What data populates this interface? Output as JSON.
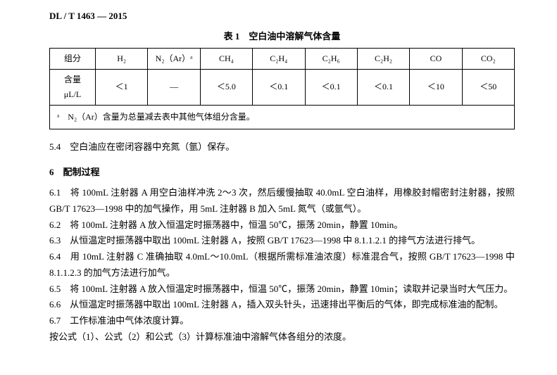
{
  "doc_id": "DL / T 1463 — 2015",
  "table": {
    "title": "表 1　空白油中溶解气体含量",
    "headers": [
      "组分",
      "H₂",
      "N₂（Ar）ᵃ",
      "CH₄",
      "C₂H₄",
      "C₂H₆",
      "C₂H₂",
      "CO",
      "CO₂"
    ],
    "row_label": "含量\nμL/L",
    "values": [
      "＜1",
      "—",
      "＜5.0",
      "＜0.1",
      "＜0.1",
      "＜0.1",
      "＜10",
      "＜50"
    ],
    "footnote": "ᵃ　N₂（Ar）含量为总量减去表中其他气体组分含量。"
  },
  "section5_4": "5.4　空白油应在密闭容器中充氮（氩）保存。",
  "section6_head": "6　配制过程",
  "p6_1": "6.1　将 100mL 注射器 A 用空白油样冲洗 2～3 次，然后缓慢抽取 40.0mL 空白油样，用橡胶封帽密封注射器，按照 GB/T 17623—1998 中的加气操作，用 5mL 注射器 B 加入 5mL 氮气（或氩气）。",
  "p6_2": "6.2　将 100mL 注射器 A 放入恒温定时振荡器中，恒温 50℃，振荡 20min，静置 10min。",
  "p6_3": "6.3　从恒温定时振荡器中取出 100mL 注射器 A，按照 GB/T 17623—1998 中 8.1.1.2.1 的排气方法进行排气。",
  "p6_4": "6.4　用 10mL 注射器 C 准确抽取 4.0mL～10.0mL（根据所需标准油浓度）标准混合气，按照 GB/T 17623—1998 中 8.1.1.2.3 的加气方法进行加气。",
  "p6_5": "6.5　将 100mL 注射器 A 放入恒温定时振荡器中，恒温 50℃，振荡 20min，静置 10min；读取并记录当时大气压力。",
  "p6_6": "6.6　从恒温定时振荡器中取出 100mL 注射器 A，插入双头针头，迅速排出平衡后的气体，即完成标准油的配制。",
  "p6_7": "6.7　工作标准油中气体浓度计算。",
  "p_formula": "按公式（1）、公式（2）和公式（3）计算标准油中溶解气体各组分的浓度。"
}
